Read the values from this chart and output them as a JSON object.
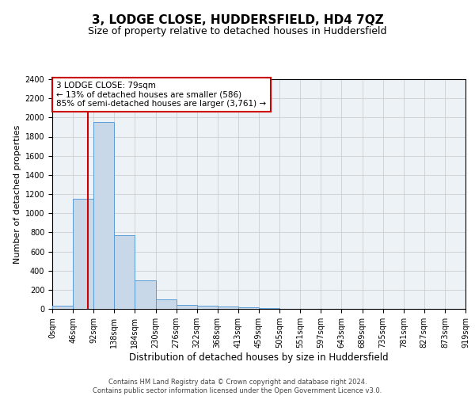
{
  "title": "3, LODGE CLOSE, HUDDERSFIELD, HD4 7QZ",
  "subtitle": "Size of property relative to detached houses in Huddersfield",
  "xlabel": "Distribution of detached houses by size in Huddersfield",
  "ylabel": "Number of detached properties",
  "footer_line1": "Contains HM Land Registry data © Crown copyright and database right 2024.",
  "footer_line2": "Contains public sector information licensed under the Open Government Licence v3.0.",
  "bin_labels": [
    "0sqm",
    "46sqm",
    "92sqm",
    "138sqm",
    "184sqm",
    "230sqm",
    "276sqm",
    "322sqm",
    "368sqm",
    "413sqm",
    "459sqm",
    "505sqm",
    "551sqm",
    "597sqm",
    "643sqm",
    "689sqm",
    "735sqm",
    "781sqm",
    "827sqm",
    "873sqm",
    "919sqm"
  ],
  "bar_values": [
    30,
    1150,
    1950,
    770,
    300,
    100,
    45,
    35,
    25,
    15,
    10,
    0,
    0,
    0,
    0,
    0,
    0,
    0,
    0,
    0
  ],
  "bar_color": "#c8d8e8",
  "bar_edge_color": "#5b9bd5",
  "property_line_x": 79,
  "property_line_label": "3 LODGE CLOSE: 79sqm",
  "annotation_line1": "← 13% of detached houses are smaller (586)",
  "annotation_line2": "85% of semi-detached houses are larger (3,761) →",
  "annotation_box_color": "#cc0000",
  "ylim": [
    0,
    2400
  ],
  "yticks": [
    0,
    200,
    400,
    600,
    800,
    1000,
    1200,
    1400,
    1600,
    1800,
    2000,
    2200,
    2400
  ],
  "grid_color": "#c8c8c8",
  "background_color": "#edf2f7",
  "title_fontsize": 11,
  "subtitle_fontsize": 9,
  "xlabel_fontsize": 8.5,
  "ylabel_fontsize": 8,
  "tick_fontsize": 7,
  "annotation_fontsize": 7.5,
  "footer_fontsize": 6,
  "bin_width": 46
}
